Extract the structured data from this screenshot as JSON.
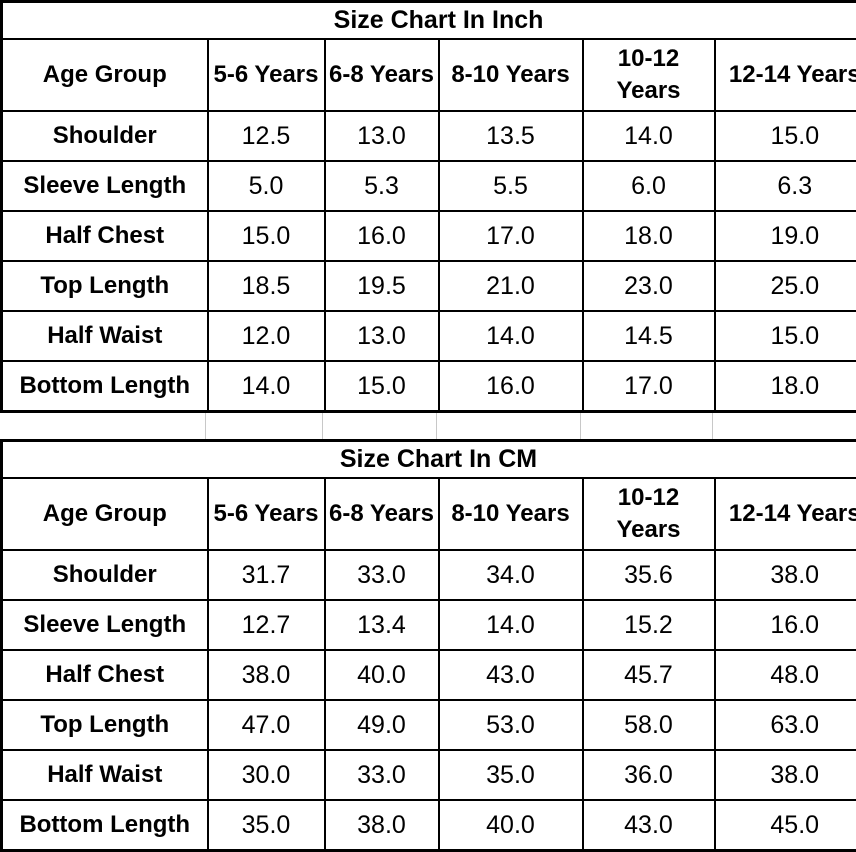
{
  "page": {
    "background_color": "#ffffff",
    "border_color": "#000000",
    "text_color": "#000000",
    "gap_gridline_color": "#c8c8c8"
  },
  "tables": [
    {
      "title": "Size Chart In Inch",
      "columns": [
        "Age Group",
        "5-6 Years",
        "6-8 Years",
        "8-10 Years",
        "10-12\nYears",
        "12-14 Years"
      ],
      "rows": [
        {
          "label": "Shoulder",
          "values": [
            "12.5",
            "13.0",
            "13.5",
            "14.0",
            "15.0"
          ]
        },
        {
          "label": "Sleeve Length",
          "values": [
            "5.0",
            "5.3",
            "5.5",
            "6.0",
            "6.3"
          ]
        },
        {
          "label": "Half Chest",
          "values": [
            "15.0",
            "16.0",
            "17.0",
            "18.0",
            "19.0"
          ]
        },
        {
          "label": "Top Length",
          "values": [
            "18.5",
            "19.5",
            "21.0",
            "23.0",
            "25.0"
          ]
        },
        {
          "label": "Half Waist",
          "values": [
            "12.0",
            "13.0",
            "14.0",
            "14.5",
            "15.0"
          ]
        },
        {
          "label": "Bottom Length",
          "values": [
            "14.0",
            "15.0",
            "16.0",
            "17.0",
            "18.0"
          ]
        }
      ]
    },
    {
      "title": "Size Chart In CM",
      "columns": [
        "Age Group",
        "5-6 Years",
        "6-8 Years",
        "8-10 Years",
        "10-12\nYears",
        "12-14 Years"
      ],
      "rows": [
        {
          "label": "Shoulder",
          "values": [
            "31.7",
            "33.0",
            "34.0",
            "35.6",
            "38.0"
          ]
        },
        {
          "label": "Sleeve Length",
          "values": [
            "12.7",
            "13.4",
            "14.0",
            "15.2",
            "16.0"
          ]
        },
        {
          "label": "Half Chest",
          "values": [
            "38.0",
            "40.0",
            "43.0",
            "45.7",
            "48.0"
          ]
        },
        {
          "label": "Top Length",
          "values": [
            "47.0",
            "49.0",
            "53.0",
            "58.0",
            "63.0"
          ]
        },
        {
          "label": "Half Waist",
          "values": [
            "30.0",
            "33.0",
            "35.0",
            "36.0",
            "38.0"
          ]
        },
        {
          "label": "Bottom Length",
          "values": [
            "35.0",
            "38.0",
            "40.0",
            "43.0",
            "45.0"
          ]
        }
      ]
    }
  ],
  "chart_data": [
    {
      "type": "table",
      "title": "Size Chart In Inch",
      "columns": [
        "Age Group",
        "5-6 Years",
        "6-8 Years",
        "8-10 Years",
        "10-12 Years",
        "12-14 Years"
      ],
      "rows": [
        [
          "Shoulder",
          "12.5",
          "13.0",
          "13.5",
          "14.0",
          "15.0"
        ],
        [
          "Sleeve Length",
          "5.0",
          "5.3",
          "5.5",
          "6.0",
          "6.3"
        ],
        [
          "Half Chest",
          "15.0",
          "16.0",
          "17.0",
          "18.0",
          "19.0"
        ],
        [
          "Top Length",
          "18.5",
          "19.5",
          "21.0",
          "23.0",
          "25.0"
        ],
        [
          "Half Waist",
          "12.0",
          "13.0",
          "14.0",
          "14.5",
          "15.0"
        ],
        [
          "Bottom Length",
          "14.0",
          "15.0",
          "16.0",
          "17.0",
          "18.0"
        ]
      ]
    },
    {
      "type": "table",
      "title": "Size Chart In CM",
      "columns": [
        "Age Group",
        "5-6 Years",
        "6-8 Years",
        "8-10 Years",
        "10-12 Years",
        "12-14 Years"
      ],
      "rows": [
        [
          "Shoulder",
          "31.7",
          "33.0",
          "34.0",
          "35.6",
          "38.0"
        ],
        [
          "Sleeve Length",
          "12.7",
          "13.4",
          "14.0",
          "15.2",
          "16.0"
        ],
        [
          "Half Chest",
          "38.0",
          "40.0",
          "43.0",
          "45.7",
          "48.0"
        ],
        [
          "Top Length",
          "47.0",
          "49.0",
          "53.0",
          "58.0",
          "63.0"
        ],
        [
          "Half Waist",
          "30.0",
          "33.0",
          "35.0",
          "36.0",
          "38.0"
        ],
        [
          "Bottom Length",
          "35.0",
          "38.0",
          "40.0",
          "43.0",
          "45.0"
        ]
      ]
    }
  ]
}
